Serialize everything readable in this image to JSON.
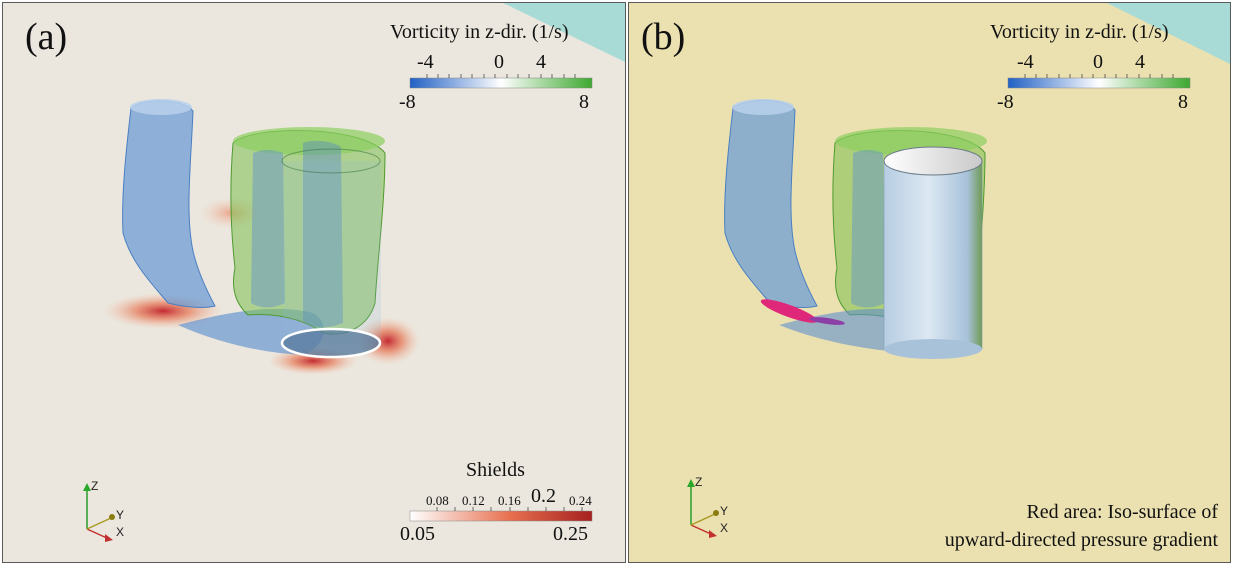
{
  "panel_a": {
    "label": "(a)",
    "vorticity_legend": {
      "title": "Vorticity in z-dir. (1/s)",
      "major_ticks": [
        "-4",
        "0",
        "4"
      ],
      "min": "-8",
      "max": "8",
      "colors": [
        "#2160c4",
        "#ffffff",
        "#3da82f"
      ]
    },
    "shields_legend": {
      "title": "Shields",
      "minor_ticks": [
        "0.08",
        "0.12",
        "0.16"
      ],
      "major_tick": "0.2",
      "top_tick": "0.24",
      "min": "0.05",
      "max": "0.25",
      "colors": [
        "#ffffff",
        "#e7704f",
        "#a51f1f"
      ]
    },
    "axes": {
      "z": "Z",
      "y": "Y",
      "x": "X"
    }
  },
  "panel_b": {
    "label": "(b)",
    "vorticity_legend": {
      "title": "Vorticity in z-dir. (1/s)",
      "major_ticks": [
        "-4",
        "0",
        "4"
      ],
      "min": "-8",
      "max": "8",
      "colors": [
        "#2160c4",
        "#ffffff",
        "#3da82f"
      ]
    },
    "note": {
      "line1": "Red area: Iso-surface of",
      "line2": "upward-directed pressure gradient"
    },
    "axes": {
      "z": "Z",
      "y": "Y",
      "x": "X"
    }
  },
  "colors": {
    "panel_a_bg": "#ebe7de",
    "panel_b_bg": "#ebe1b0",
    "corner_accent": "#a9dbd6",
    "negative_vortex": "#6a9bd6",
    "positive_vortex": "#6eb74a",
    "pressure_gradient": "#e0287a"
  }
}
